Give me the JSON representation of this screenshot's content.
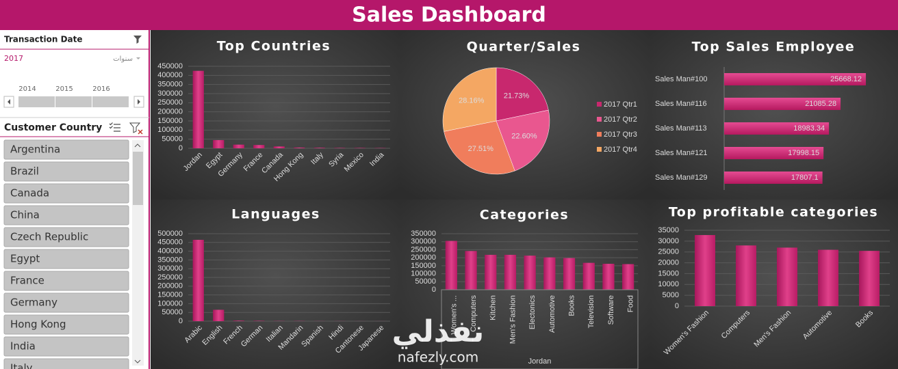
{
  "header": {
    "title": "Sales Dashboard"
  },
  "slicers": [
    {
      "title": "Transaction Date",
      "selection": "2017",
      "level": "سنوات",
      "items": [
        "2014",
        "2015",
        "2016"
      ]
    },
    {
      "title": "Customer Country",
      "items": [
        "Argentina",
        "Brazil",
        "Canada",
        "China",
        "Czech Republic",
        "Egypt",
        "France",
        "Germany",
        "Hong Kong",
        "India",
        "Italy"
      ]
    }
  ],
  "watermark": {
    "logo": "نفذلي",
    "url": "nafezly.com"
  },
  "chart_data": [
    {
      "type": "bar",
      "title": "Top Countries",
      "color": "#d1267a",
      "grid": true,
      "categories": [
        "Jordan",
        "Egypt",
        "Germany",
        "France",
        "Canada",
        "Hong Kong",
        "Italy",
        "Syria",
        "Mexico",
        "India"
      ],
      "values": [
        425000,
        45000,
        20000,
        18000,
        10000,
        4000,
        3000,
        2000,
        2000,
        1500
      ],
      "ylim": [
        0,
        450000
      ],
      "yticks": [
        0,
        50000,
        100000,
        150000,
        200000,
        250000,
        300000,
        350000,
        400000,
        450000
      ]
    },
    {
      "type": "pie",
      "title": "Quarter/Sales",
      "legend": "right",
      "categories": [
        "2017 Qtr1",
        "2017 Qtr2",
        "2017 Qtr3",
        "2017 Qtr4"
      ],
      "values": [
        21.73,
        22.6,
        27.51,
        28.16
      ],
      "value_labels": [
        "21.73%",
        "22.60%",
        "27.51%",
        "28.16%"
      ],
      "colors": [
        "#c8286e",
        "#e9578f",
        "#f07d5c",
        "#f4a763"
      ]
    },
    {
      "type": "barh",
      "title": "Top Sales Employee",
      "color": "#d1267a",
      "categories": [
        "Sales Man#100",
        "Sales Man#116",
        "Sales Man#113",
        "Sales Man#121",
        "Sales Man#129"
      ],
      "values": [
        25668.12,
        21085.28,
        18983.34,
        17998.15,
        17807.1
      ],
      "xlim": [
        0,
        30000
      ]
    },
    {
      "type": "bar",
      "title": "Languages",
      "color": "#d1267a",
      "grid": true,
      "categories": [
        "Arabic",
        "English",
        "French",
        "German",
        "Italian",
        "Mandarin",
        "Spanish",
        "Hindi",
        "Cantonese",
        "Japanese"
      ],
      "values": [
        465000,
        65000,
        3000,
        2000,
        1000,
        1000,
        500,
        500,
        300,
        300
      ],
      "ylim": [
        0,
        500000
      ],
      "yticks": [
        0,
        50000,
        100000,
        150000,
        200000,
        250000,
        300000,
        350000,
        400000,
        450000,
        500000
      ]
    },
    {
      "type": "bar",
      "title": "Categories",
      "color": "#d1267a",
      "grid": true,
      "x_group_label": "Jordan",
      "categories": [
        "Women's ...",
        "Computers",
        "Kitchen",
        "Men's Fashion",
        "Electonics",
        "Automotive",
        "Books",
        "Television",
        "Software",
        "Food"
      ],
      "values": [
        305000,
        242000,
        218000,
        218000,
        213000,
        202000,
        198000,
        168000,
        162000,
        160000
      ],
      "ylim": [
        0,
        350000
      ],
      "yticks": [
        0,
        50000,
        100000,
        150000,
        200000,
        250000,
        300000,
        350000
      ]
    },
    {
      "type": "bar",
      "title": "Top profitable categories",
      "color": "#d1267a",
      "grid": true,
      "categories": [
        "Women's Fashion",
        "Computers",
        "Men's Fashion",
        "Automotive",
        "Books"
      ],
      "values": [
        32800,
        28000,
        27000,
        26000,
        25500
      ],
      "ylim": [
        0,
        35000
      ],
      "yticks": [
        0,
        5000,
        10000,
        15000,
        20000,
        25000,
        30000,
        35000
      ]
    }
  ]
}
